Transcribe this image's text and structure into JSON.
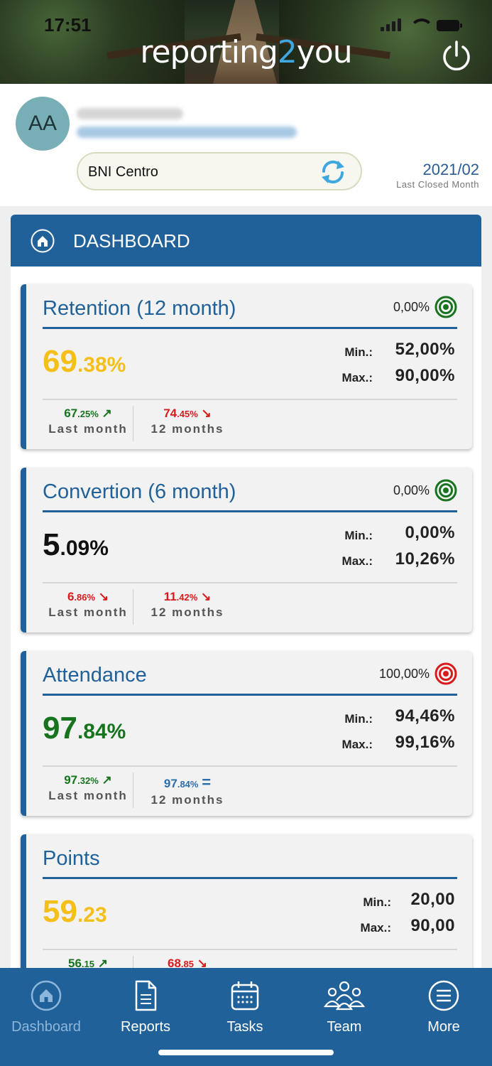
{
  "status_bar": {
    "time": "17:51"
  },
  "header": {
    "logo_part1": "reporting",
    "logo_part2": "2",
    "logo_part3": "you",
    "power_icon": "power-icon"
  },
  "profile": {
    "initials": "AA",
    "chapter": "BNI Centro",
    "period_value": "2021/02",
    "period_label": "Last Closed Month"
  },
  "dashboard": {
    "title": "DASHBOARD"
  },
  "colors": {
    "primary": "#21619a",
    "yellow": "#f4bf19",
    "green": "#17731e",
    "red": "#d81b1b",
    "target_green": "#17731e",
    "target_red": "#d81b1b"
  },
  "kpis": [
    {
      "title": "Retention (12 month)",
      "target": "0,00%",
      "target_icon": "target-green-icon",
      "value_int": "69",
      "value_dec": ".38%",
      "min_label": "Min.:",
      "min_value": "52,00%",
      "max_label": "Max.:",
      "max_value": "90,00%",
      "last_month_int": "67",
      "last_month_dec": ".25%",
      "last_month_arrow": "↗",
      "last_month_label": "Last month",
      "months12_int": "74",
      "months12_dec": ".45%",
      "months12_arrow": "↘",
      "months12_label": "12 months"
    },
    {
      "title": "Convertion (6 month)",
      "target": "0,00%",
      "target_icon": "target-green-icon",
      "value_int": "5",
      "value_dec": ".09%",
      "min_label": "Min.:",
      "min_value": "0,00%",
      "max_label": "Max.:",
      "max_value": "10,26%",
      "last_month_int": "6",
      "last_month_dec": ".86%",
      "last_month_arrow": "↘",
      "last_month_label": "Last month",
      "months12_int": "11",
      "months12_dec": ".42%",
      "months12_arrow": "↘",
      "months12_label": "12 months"
    },
    {
      "title": "Attendance",
      "target": "100,00%",
      "target_icon": "target-red-icon",
      "value_int": "97",
      "value_dec": ".84%",
      "min_label": "Min.:",
      "min_value": "94,46%",
      "max_label": "Max.:",
      "max_value": "99,16%",
      "last_month_int": "97",
      "last_month_dec": ".32%",
      "last_month_arrow": "↗",
      "last_month_label": "Last month",
      "months12_int": "97",
      "months12_dec": ".84%",
      "months12_arrow": "=",
      "months12_label": "12 months"
    },
    {
      "title": "Points",
      "value_int": "59",
      "value_dec": ".23",
      "min_label": "Min.:",
      "min_value": "20,00",
      "max_label": "Max.:",
      "max_value": "90,00",
      "last_month_int": "56",
      "last_month_dec": ".15",
      "last_month_arrow": "↗",
      "months12_int": "68",
      "months12_dec": ".85",
      "months12_arrow": "↘"
    }
  ],
  "tabs": [
    {
      "label": "Dashboard",
      "icon": "home-icon",
      "active": true
    },
    {
      "label": "Reports",
      "icon": "document-icon",
      "active": false
    },
    {
      "label": "Tasks",
      "icon": "calendar-icon",
      "active": false
    },
    {
      "label": "Team",
      "icon": "team-icon",
      "active": false
    },
    {
      "label": "More",
      "icon": "menu-icon",
      "active": false
    }
  ]
}
